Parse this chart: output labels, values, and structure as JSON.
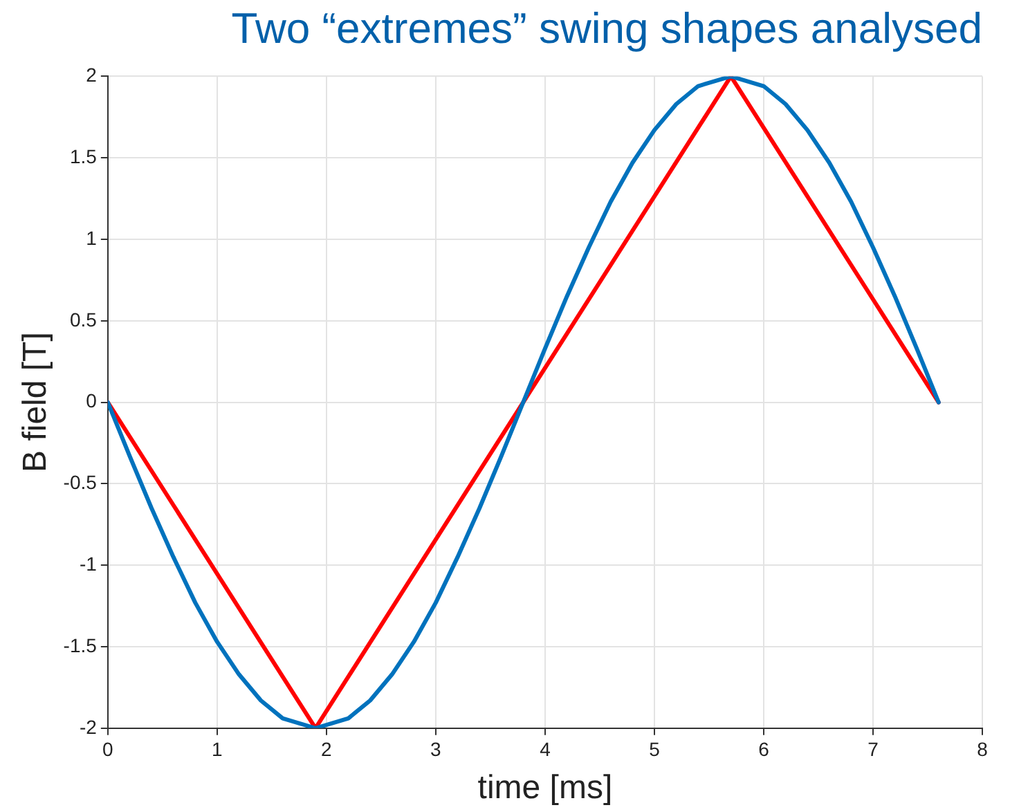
{
  "chart_data": {
    "type": "line",
    "title": "Two “extremes” swing shapes analysed",
    "xlabel": "time [ms]",
    "ylabel": "B field [T]",
    "series": [
      {
        "color": "#0072bd",
        "x": [
          0,
          0.2,
          0.4,
          0.6,
          0.8,
          1.0,
          1.2,
          1.4,
          1.6,
          1.9,
          2.2,
          2.4,
          2.6,
          2.8,
          3.0,
          3.2,
          3.4,
          3.6,
          3.8,
          4.0,
          4.2,
          4.4,
          4.6,
          4.8,
          5.0,
          5.2,
          5.4,
          5.7,
          6.0,
          6.2,
          6.4,
          6.6,
          6.8,
          7.0,
          7.2,
          7.4,
          7.6
        ],
        "values": [
          0,
          -0.33,
          -0.65,
          -0.95,
          -1.23,
          -1.47,
          -1.67,
          -1.83,
          -1.94,
          -2,
          -1.94,
          -1.83,
          -1.67,
          -1.47,
          -1.23,
          -0.95,
          -0.65,
          -0.33,
          0,
          0.33,
          0.65,
          0.95,
          1.23,
          1.47,
          1.67,
          1.83,
          1.94,
          2,
          1.94,
          1.83,
          1.67,
          1.47,
          1.23,
          0.95,
          0.65,
          0.33,
          0
        ]
      },
      {
        "color": "#ff0000",
        "x": [
          0,
          1.9,
          5.7,
          7.6
        ],
        "values": [
          0,
          -2,
          2,
          0
        ]
      }
    ],
    "xlim": [
      0,
      8
    ],
    "xticks": [
      0,
      1,
      2,
      3,
      4,
      5,
      6,
      7,
      8
    ],
    "ylim": [
      -2,
      2
    ],
    "yticks": [
      -2,
      -1.5,
      -1,
      -0.5,
      0,
      0.5,
      1,
      1.5,
      2
    ],
    "grid": true,
    "marker": "none",
    "line_style": "solid",
    "legend": false
  }
}
